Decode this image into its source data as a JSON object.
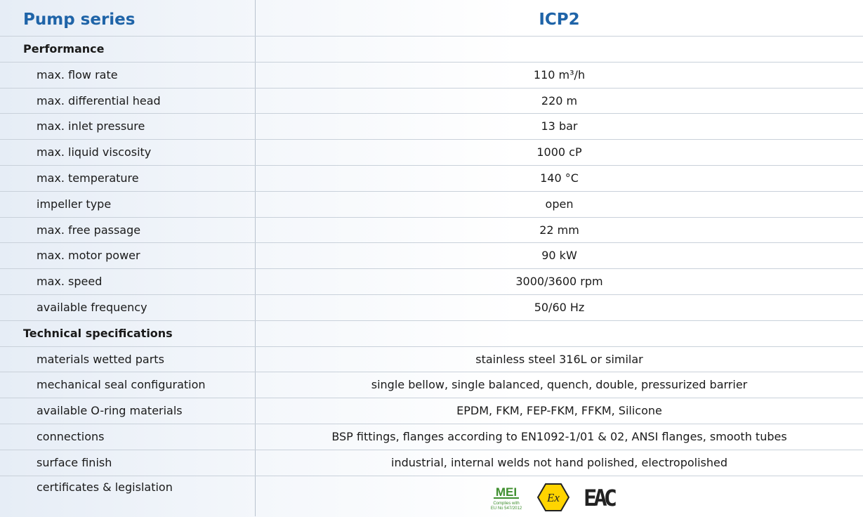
{
  "header": {
    "title": "Pump series",
    "model": "ICP2"
  },
  "sections": [
    {
      "title": "Performance",
      "rows": [
        [
          "max. flow rate",
          "110 m³/h"
        ],
        [
          "max. differential head",
          "220 m"
        ],
        [
          "max. inlet pressure",
          "13 bar"
        ],
        [
          "max. liquid viscosity",
          "1000 cP"
        ],
        [
          "max. temperature",
          "140 °C"
        ],
        [
          "impeller type",
          "open"
        ],
        [
          "max. free passage",
          "22 mm"
        ],
        [
          "max. motor power",
          "90 kW"
        ],
        [
          "max. speed",
          "3000/3600 rpm"
        ],
        [
          "available frequency",
          "50/60 Hz"
        ]
      ]
    },
    {
      "title": "Technical specifications",
      "rows": [
        [
          "materials wetted parts",
          "stainless steel 316L or similar"
        ],
        [
          "mechanical seal configuration",
          "single bellow, single balanced, quench, double, pressurized barrier"
        ],
        [
          "available O-ring materials",
          "EPDM, FKM, FEP-FKM, FFKM, Silicone"
        ],
        [
          "connections",
          "BSP fittings, flanges according to EN1092-1/01 & 02, ANSI flanges, smooth tubes"
        ],
        [
          "surface finish",
          "industrial, internal welds not hand polished, electropolished"
        ]
      ]
    }
  ],
  "certificates": {
    "label": "certificates & legislation",
    "mei": "MEI",
    "mei_note1": "Complies with",
    "mei_note2": "EU No 547/2012",
    "ex": "Ex",
    "eac": "EAC"
  }
}
